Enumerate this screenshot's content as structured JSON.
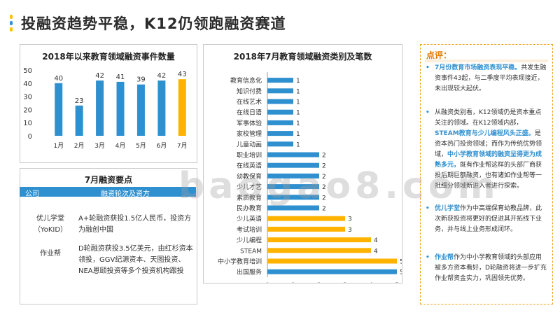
{
  "page": {
    "title": "投融资趋势平稳，K12仍领跑融资赛道",
    "watermark": "baogao8.com"
  },
  "colors": {
    "blue": "#2f90d0",
    "orange": "#ffb300",
    "dot1": "#ffc000",
    "dot2": "#2f90d0",
    "dot3": "#ffc000",
    "accent": "#e07b00"
  },
  "chart_data": [
    {
      "type": "bar",
      "title": "2018年以来教育领域融资事件数量",
      "categories": [
        "1月",
        "2月",
        "3月",
        "4月",
        "5月",
        "6月",
        "7月"
      ],
      "values": [
        40,
        23,
        42,
        41,
        39,
        42,
        43
      ],
      "highlight_index": 6,
      "ylim": [
        0,
        50
      ],
      "yticks": [
        0,
        10,
        20,
        30,
        40,
        50
      ],
      "grid": false,
      "legend": "none"
    },
    {
      "type": "bar",
      "orientation": "horizontal",
      "title": "2018年7月教育领域融资类别及笔数",
      "categories": [
        "教育信息化",
        "知识付费",
        "在线艺术",
        "在线日语",
        "军事体验",
        "家校管理",
        "儿童动画",
        "职业培训",
        "在线英语",
        "幼教保育",
        "少儿才艺",
        "素质教育",
        "民办教育",
        "少儿英语",
        "考试培训",
        "少儿编程",
        "STEAM",
        "中小学教育培训",
        "出国服务"
      ],
      "values": [
        1,
        1,
        1,
        1,
        1,
        1,
        1,
        2,
        2,
        2,
        2,
        2,
        2,
        3,
        3,
        4,
        4,
        5,
        5
      ],
      "colors": [
        "blue",
        "blue",
        "blue",
        "blue",
        "blue",
        "blue",
        "blue",
        "blue",
        "blue",
        "blue",
        "blue",
        "blue",
        "blue",
        "orange",
        "orange",
        "orange",
        "orange",
        "orange",
        "blue"
      ],
      "xlim": [
        0,
        5
      ],
      "xticks": [
        0,
        1,
        2,
        3,
        4,
        5
      ],
      "grid": false,
      "legend": "none"
    }
  ],
  "events": {
    "title": "7月融资要点",
    "col1": "公司",
    "col2": "融资轮次及资方",
    "company1": "优儿学堂（YoKID）",
    "deal1": "A+轮融资获投1.5亿人民币，投资方为融创中国",
    "company2": "作业帮",
    "deal2": "D轮融资获投3.5亿美元，由红杉资本领投，GGV纪源资本、天图投资、NEA恩颐投资等多个投资机构跟投"
  },
  "comment": {
    "title": "点评：",
    "p1_hl": "7月份教育市场融资表现平稳。",
    "p1": "共发生融资事件43起，与二季度平均表现接近，未出现较大起伏。",
    "p2_a": "从融资类别看，K12领域仍是资本重点关注的领域。在K12领域内部，",
    "p2_hl1": "STEAM教育与少儿编程风头正盛。",
    "p2_b": "是资本热门投资领域；而作为传统优势领域，",
    "p2_hl2": "中小学教育领域的融资呈得更为成熟多元，",
    "p2_c": "既有作业帮这样的头部厂商获投后期巨额融资，也有诸如作业帮等一批细分领域新进入者进行探索。",
    "p3_hl": "优儿学堂",
    "p3": "作为中高端保育幼教品牌，此次新获投资将更好的促进其开拓线下业务，并与线上业务形成闭环。",
    "p4_hl": "作业帮",
    "p4": "作为中小学教育领域的头部应用被多方资本看好，D轮融资将进一步扩充作业帮资金实力，巩固领先优势。"
  }
}
